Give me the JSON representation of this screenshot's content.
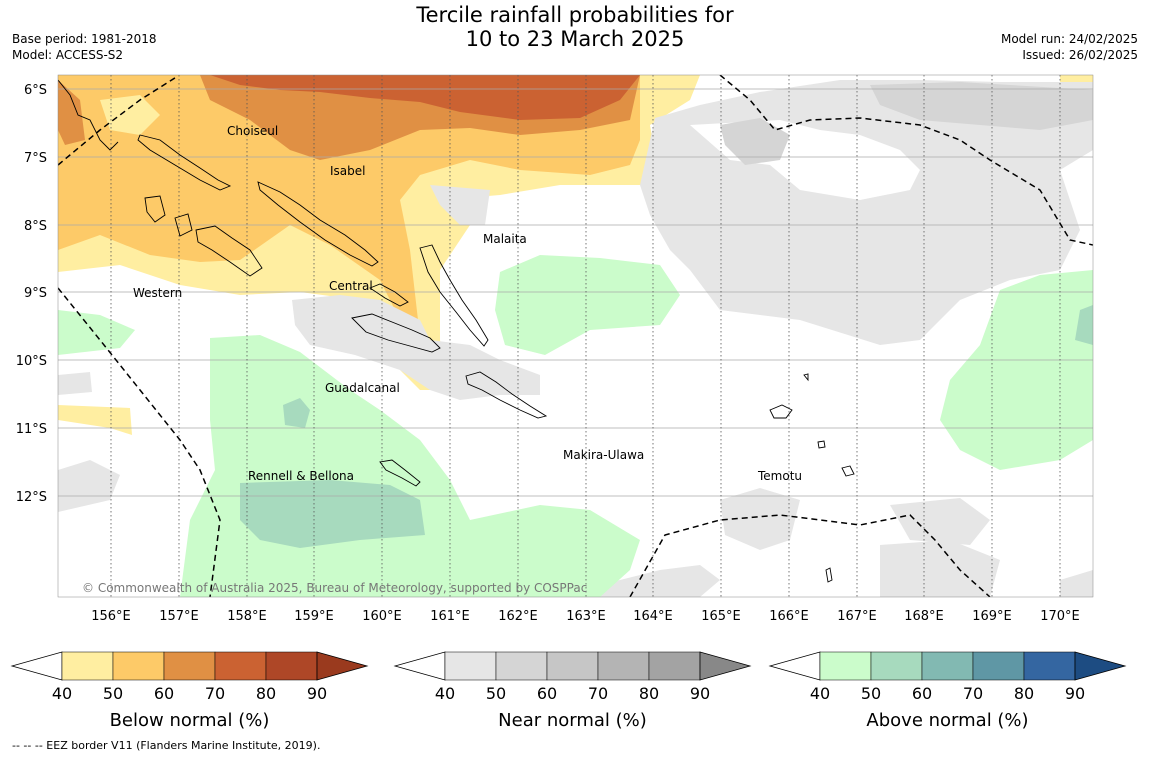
{
  "title_line1": "Tercile rainfall probabilities for",
  "title_line2": "10 to 23 March 2025",
  "meta_left": [
    "Base period: 1981-2018",
    "Model: ACCESS-S2"
  ],
  "meta_right": [
    "Model run: 24/02/2025",
    "Issued: 26/02/2025"
  ],
  "copyright": "© Commonwealth of Australia 2025, Bureau of Meteorology, supported by COSPPac",
  "lat_labels": [
    "6°S",
    "7°S",
    "8°S",
    "9°S",
    "10°S",
    "11°S",
    "12°S"
  ],
  "lon_labels": [
    "156°E",
    "157°E",
    "158°E",
    "159°E",
    "160°E",
    "161°E",
    "162°E",
    "163°E",
    "164°E",
    "165°E",
    "166°E",
    "167°E",
    "168°E",
    "169°E",
    "170°E"
  ],
  "place_labels": [
    "Choiseul",
    "Isabel",
    "Malaita",
    "Western",
    "Central",
    "Guadalcanal",
    "Makira-Ulawa",
    "Rennell & Bellona",
    "Temotu"
  ],
  "colorbars": [
    {
      "title": "Below normal (%)",
      "colors": [
        "#ffeea1",
        "#fdca68",
        "#e09044",
        "#cb6232",
        "#ae4727",
        "#9a3a1e"
      ]
    },
    {
      "title": "Near normal (%)",
      "colors": [
        "#e6e6e6",
        "#d5d5d5",
        "#c6c6c6",
        "#b4b4b4",
        "#a3a3a3",
        "#888888"
      ]
    },
    {
      "title": "Above normal (%)",
      "colors": [
        "#cbfccb",
        "#a7dabe",
        "#82b9b2",
        "#5f97a5",
        "#3466a1",
        "#1d4c82"
      ]
    }
  ],
  "tick_values": [
    "40",
    "50",
    "60",
    "70",
    "80",
    "90"
  ],
  "footnote": "--  --  -- EEZ border V11 (Flanders Marine Institute, 2019)."
}
